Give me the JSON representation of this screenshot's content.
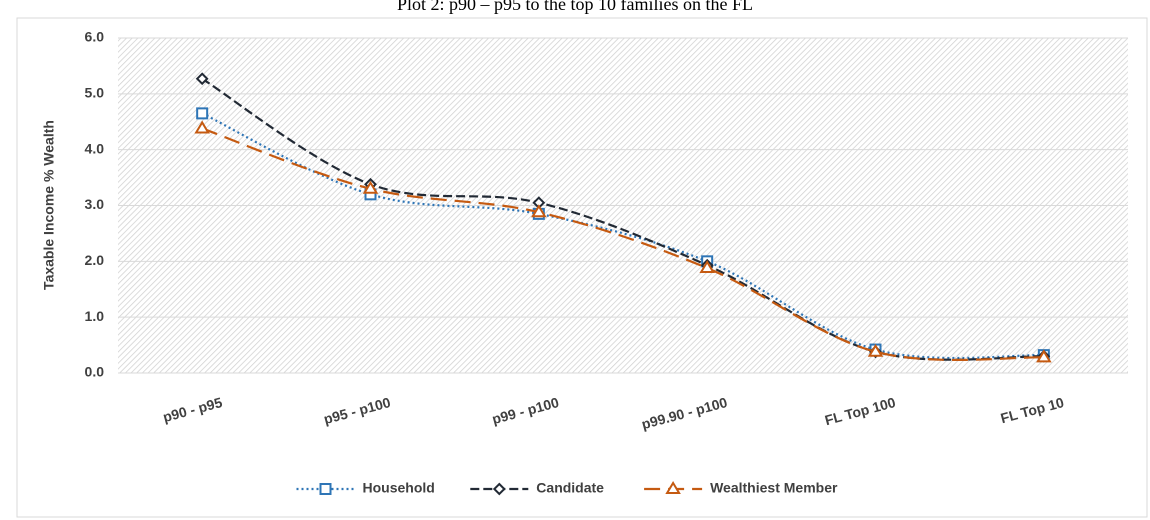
{
  "chart_data": {
    "type": "line",
    "title": "Plot 2: p90 – p95 to the top 10 families on the FL",
    "y_label": "Taxable Income % Wealth",
    "categories": [
      "p90 - p95",
      "p95 - p100",
      "p99 - p100",
      "p99.90 - p100",
      "FL Top 100",
      "FL Top 10"
    ],
    "series": [
      {
        "name": "Household",
        "color": "#2e75b6",
        "marker": "square",
        "dash": "dotted",
        "values": [
          4.65,
          3.2,
          2.85,
          2.0,
          0.42,
          0.32
        ]
      },
      {
        "name": "Candidate",
        "color": "#222a35",
        "marker": "diamond",
        "dash": "dashed",
        "values": [
          5.27,
          3.38,
          3.05,
          1.93,
          0.38,
          0.3
        ]
      },
      {
        "name": "Wealthiest Member",
        "color": "#c55a11",
        "marker": "triangle",
        "dash": "long-dash",
        "values": [
          4.38,
          3.3,
          2.88,
          1.88,
          0.38,
          0.28
        ]
      }
    ],
    "ylim": [
      0,
      6
    ],
    "yticks": [
      {
        "value": 0,
        "label": "0.0"
      },
      {
        "value": 1,
        "label": "1.0"
      },
      {
        "value": 2,
        "label": "2.0"
      },
      {
        "value": 3,
        "label": "3.0"
      },
      {
        "value": 4,
        "label": "4.0"
      },
      {
        "value": 5,
        "label": "5.0"
      },
      {
        "value": 6,
        "label": "6.0"
      }
    ],
    "grid": true,
    "legend": "bottom"
  }
}
